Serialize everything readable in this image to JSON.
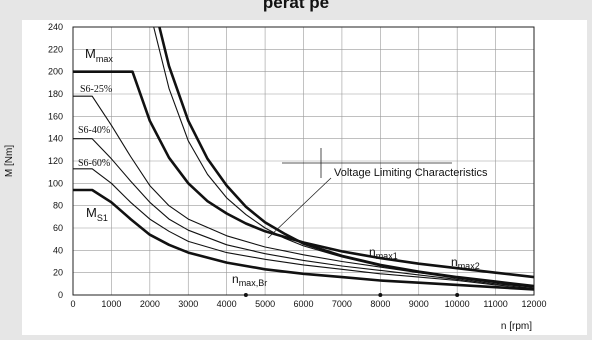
{
  "header": {
    "title_fragment": "perat pe"
  },
  "chart_data": {
    "type": "line",
    "xlabel": "n [rpm]",
    "ylabel": "M [Nm]",
    "xlim": [
      0,
      12000
    ],
    "ylim": [
      0,
      240
    ],
    "xticks": [
      0,
      1000,
      2000,
      3000,
      4000,
      5000,
      6000,
      7000,
      8000,
      9000,
      10000,
      11000,
      12000
    ],
    "yticks": [
      0,
      20,
      40,
      60,
      80,
      100,
      120,
      140,
      160,
      180,
      200,
      220,
      240
    ],
    "grid": true,
    "series": [
      {
        "name": "Mmax",
        "label": "M",
        "label_sub": "max",
        "weight": "bold",
        "points": [
          [
            0,
            200
          ],
          [
            1550,
            200
          ],
          [
            2000,
            156
          ],
          [
            2500,
            123
          ],
          [
            3000,
            100
          ],
          [
            3500,
            84
          ],
          [
            4000,
            73
          ],
          [
            4500,
            64
          ],
          [
            5000,
            57
          ],
          [
            6000,
            47
          ],
          [
            7000,
            39
          ],
          [
            8000,
            33
          ],
          [
            9000,
            28
          ],
          [
            10000,
            24
          ],
          [
            11000,
            20
          ],
          [
            12000,
            16
          ]
        ]
      },
      {
        "name": "S6-25%",
        "label": "S6-25%",
        "points": [
          [
            0,
            178
          ],
          [
            500,
            178
          ],
          [
            1000,
            152
          ],
          [
            1500,
            124
          ],
          [
            2000,
            98
          ],
          [
            2500,
            80
          ],
          [
            3000,
            68
          ],
          [
            4000,
            53
          ],
          [
            5000,
            43
          ],
          [
            6000,
            36
          ],
          [
            7000,
            30
          ],
          [
            8000,
            25
          ],
          [
            9000,
            20
          ],
          [
            10000,
            16
          ],
          [
            11000,
            12
          ],
          [
            12000,
            8
          ]
        ]
      },
      {
        "name": "S6-40%",
        "label": "S6-40%",
        "points": [
          [
            0,
            140
          ],
          [
            500,
            140
          ],
          [
            1000,
            122
          ],
          [
            1500,
            102
          ],
          [
            2000,
            83
          ],
          [
            2500,
            68
          ],
          [
            3000,
            58
          ],
          [
            4000,
            45
          ],
          [
            5000,
            37
          ],
          [
            6000,
            31
          ],
          [
            7000,
            26
          ],
          [
            8000,
            22
          ],
          [
            9000,
            18
          ],
          [
            10000,
            14
          ],
          [
            11000,
            10
          ],
          [
            12000,
            7
          ]
        ]
      },
      {
        "name": "S6-60%",
        "label": "S6-60%",
        "points": [
          [
            0,
            113
          ],
          [
            500,
            113
          ],
          [
            1000,
            100
          ],
          [
            1500,
            83
          ],
          [
            2000,
            68
          ],
          [
            2500,
            57
          ],
          [
            3000,
            48
          ],
          [
            4000,
            38
          ],
          [
            5000,
            32
          ],
          [
            6000,
            27
          ],
          [
            7000,
            23
          ],
          [
            8000,
            19
          ],
          [
            9000,
            16
          ],
          [
            10000,
            13
          ],
          [
            11000,
            9
          ],
          [
            12000,
            6
          ]
        ]
      },
      {
        "name": "MS1",
        "label": "M",
        "label_sub": "S1",
        "weight": "bold",
        "points": [
          [
            0,
            94
          ],
          [
            500,
            94
          ],
          [
            1000,
            83
          ],
          [
            1500,
            68
          ],
          [
            2000,
            54
          ],
          [
            2500,
            45
          ],
          [
            3000,
            38
          ],
          [
            4000,
            29
          ],
          [
            5000,
            23
          ],
          [
            6000,
            19
          ],
          [
            7000,
            16
          ],
          [
            8000,
            13
          ],
          [
            9000,
            11
          ],
          [
            10000,
            9
          ],
          [
            11000,
            7
          ],
          [
            12000,
            5
          ]
        ]
      },
      {
        "name": "Voltage Limiting Characteristics",
        "weight": "bold",
        "points": [
          [
            2250,
            240
          ],
          [
            2500,
            205
          ],
          [
            3000,
            156
          ],
          [
            3500,
            122
          ],
          [
            4000,
            98
          ],
          [
            4500,
            79
          ],
          [
            5000,
            65
          ],
          [
            5500,
            55
          ],
          [
            6000,
            46
          ],
          [
            7000,
            35
          ],
          [
            8000,
            27
          ],
          [
            9000,
            21
          ],
          [
            10000,
            16
          ],
          [
            11000,
            12
          ],
          [
            12000,
            8
          ]
        ]
      },
      {
        "name": "Voltage Limiting Characteristics (2)",
        "points": [
          [
            2100,
            240
          ],
          [
            2500,
            185
          ],
          [
            3000,
            138
          ],
          [
            3500,
            108
          ],
          [
            4000,
            87
          ],
          [
            4500,
            72
          ],
          [
            5000,
            60
          ],
          [
            5500,
            51
          ],
          [
            6000,
            44
          ],
          [
            7000,
            34
          ],
          [
            8000,
            26
          ],
          [
            9000,
            20
          ],
          [
            10000,
            15
          ],
          [
            11000,
            11
          ],
          [
            12000,
            7
          ]
        ]
      }
    ],
    "annotations": {
      "voltage_label": "Voltage Limiting Characteristics",
      "nmax_br": {
        "main": "n",
        "sub": "max,Br"
      },
      "nmax1": {
        "main": "n",
        "sub": "max1"
      },
      "nmax2": {
        "main": "n",
        "sub": "max2"
      },
      "nmax_br_x": 4500,
      "nmax1_x": 8000,
      "nmax2_x": 10000
    }
  }
}
